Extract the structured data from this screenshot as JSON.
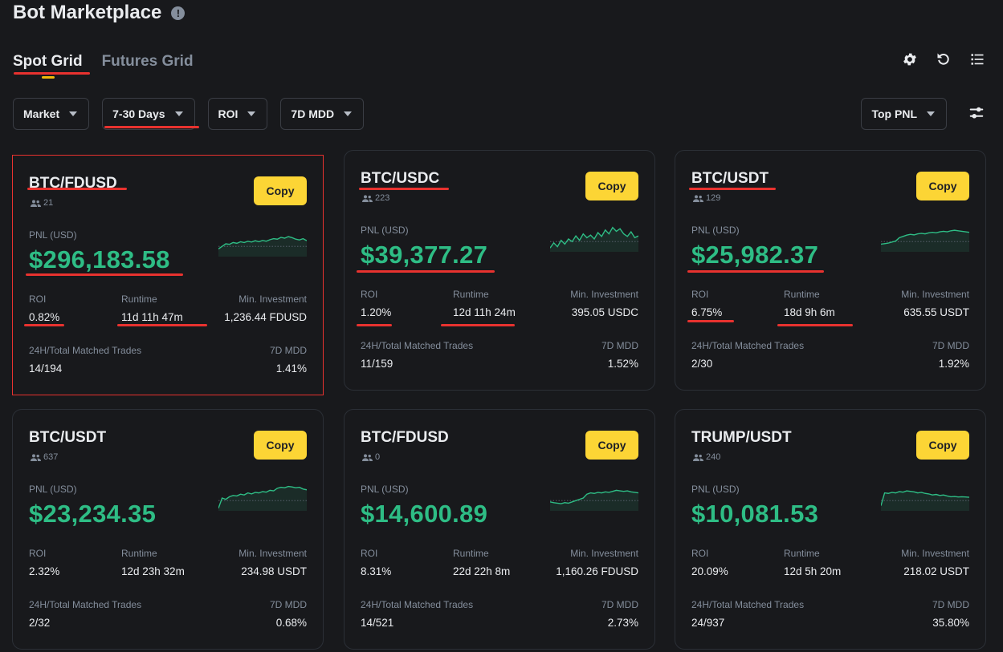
{
  "header": {
    "title": "Bot Marketplace",
    "info_icon": "info-icon"
  },
  "tabs": [
    {
      "label": "Spot Grid",
      "active": true
    },
    {
      "label": "Futures Grid",
      "active": false
    }
  ],
  "toolbar_icons": [
    "gear-icon",
    "refresh-icon",
    "list-icon"
  ],
  "filters": [
    {
      "label": "Market"
    },
    {
      "label": "7-30 Days"
    },
    {
      "label": "ROI"
    },
    {
      "label": "7D MDD"
    }
  ],
  "sort": {
    "label": "Top PNL"
  },
  "labels": {
    "copy": "Copy",
    "pnl": "PNL (USD)",
    "roi": "ROI",
    "runtime": "Runtime",
    "min_investment": "Min. Investment",
    "trades": "24H/Total Matched Trades",
    "mdd": "7D MDD"
  },
  "colors": {
    "accent": "#fcd535",
    "profit": "#2ebd85",
    "loss": "#f6465d",
    "annotation": "#e8322f"
  },
  "cards": [
    {
      "pair": "BTC/FDUSD",
      "users": "21",
      "pnl": "$296,183.58",
      "roi": "0.82%",
      "runtime": "11d 11h 47m",
      "min_investment": "1,236.44 FDUSD",
      "trades": "14/194",
      "mdd": "1.41%",
      "spark": [
        0.3,
        0.4,
        0.5,
        0.48,
        0.55,
        0.52,
        0.58,
        0.55,
        0.6,
        0.57,
        0.62,
        0.58,
        0.63,
        0.6,
        0.66,
        0.7,
        0.68,
        0.75,
        0.72,
        0.78,
        0.74,
        0.68,
        0.65,
        0.7,
        0.62
      ]
    },
    {
      "pair": "BTC/USDC",
      "users": "223",
      "pnl": "$39,377.27",
      "roi": "1.20%",
      "runtime": "12d 11h 24m",
      "min_investment": "395.05 USDC",
      "trades": "11/159",
      "mdd": "1.52%",
      "spark": [
        0.15,
        0.35,
        0.2,
        0.45,
        0.3,
        0.5,
        0.4,
        0.62,
        0.45,
        0.7,
        0.55,
        0.65,
        0.5,
        0.75,
        0.6,
        0.85,
        0.7,
        0.95,
        0.8,
        0.9,
        0.7,
        0.6,
        0.78,
        0.55,
        0.62
      ]
    },
    {
      "pair": "BTC/USDT",
      "users": "129",
      "pnl": "$25,982.37",
      "roi": "6.75%",
      "runtime": "18d 9h 6m",
      "min_investment": "635.55 USDT",
      "trades": "2/30",
      "mdd": "1.92%",
      "spark": [
        0.3,
        0.32,
        0.34,
        0.38,
        0.42,
        0.55,
        0.6,
        0.65,
        0.68,
        0.66,
        0.7,
        0.72,
        0.7,
        0.74,
        0.76,
        0.74,
        0.78,
        0.8,
        0.78,
        0.82,
        0.84,
        0.82,
        0.8,
        0.78,
        0.76
      ]
    },
    {
      "pair": "BTC/USDT",
      "users": "637",
      "pnl": "$23,234.35",
      "roi": "2.32%",
      "runtime": "12d 23h 32m",
      "min_investment": "234.98 USDT",
      "trades": "2/32",
      "mdd": "0.68%",
      "spark": [
        0.1,
        0.5,
        0.45,
        0.55,
        0.6,
        0.58,
        0.65,
        0.62,
        0.7,
        0.66,
        0.72,
        0.7,
        0.75,
        0.73,
        0.8,
        0.78,
        0.88,
        0.92,
        0.9,
        0.95,
        0.93,
        0.9,
        0.92,
        0.85,
        0.82
      ]
    },
    {
      "pair": "BTC/FDUSD",
      "users": "0",
      "pnl": "$14,600.89",
      "roi": "8.31%",
      "runtime": "22d 22h 8m",
      "min_investment": "1,160.26 FDUSD",
      "trades": "14/521",
      "mdd": "2.73%",
      "spark": [
        0.35,
        0.32,
        0.3,
        0.28,
        0.32,
        0.3,
        0.35,
        0.4,
        0.45,
        0.5,
        0.65,
        0.7,
        0.68,
        0.72,
        0.7,
        0.74,
        0.72,
        0.76,
        0.8,
        0.78,
        0.76,
        0.78,
        0.74,
        0.72,
        0.7
      ]
    },
    {
      "pair": "TRUMP/USDT",
      "users": "240",
      "pnl": "$10,081.53",
      "roi": "20.09%",
      "runtime": "12d 5h 20m",
      "min_investment": "218.02 USDT",
      "trades": "24/937",
      "mdd": "35.80%",
      "spark": [
        0.2,
        0.7,
        0.68,
        0.72,
        0.7,
        0.75,
        0.73,
        0.78,
        0.76,
        0.74,
        0.7,
        0.72,
        0.68,
        0.66,
        0.62,
        0.64,
        0.6,
        0.62,
        0.58,
        0.55,
        0.56,
        0.54,
        0.55,
        0.54,
        0.53
      ]
    }
  ]
}
